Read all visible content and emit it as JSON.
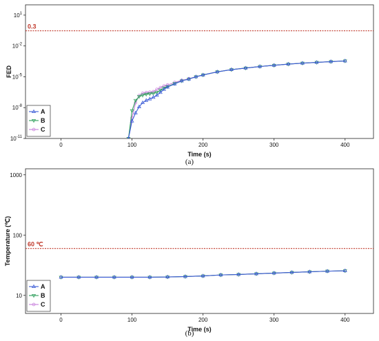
{
  "chart_data": [
    {
      "type": "line",
      "caption": "(a)",
      "xlabel": "Time (s)",
      "ylabel": "FED",
      "xlim": [
        -50,
        440
      ],
      "xticks": [
        0,
        100,
        200,
        300,
        400
      ],
      "yscale": "log",
      "ylim_exp": [
        -11,
        2
      ],
      "yticks": [
        {
          "exp": 1,
          "base": "10",
          "sup": "1"
        },
        {
          "exp": -2,
          "base": "10",
          "sup": "-2"
        },
        {
          "exp": -5,
          "base": "10",
          "sup": "-5"
        },
        {
          "exp": -8,
          "base": "10",
          "sup": "-8"
        },
        {
          "exp": -11,
          "base": "10",
          "sup": "-11"
        }
      ],
      "reference": {
        "value": 0.3,
        "label": "0.3",
        "color": "#c0392b"
      },
      "legend": "bottom-left",
      "series": [
        {
          "name": "A",
          "color": "#3b5bd6",
          "marker": "triangle-up",
          "x": [
            95,
            100,
            105,
            110,
            115,
            120,
            125,
            130,
            135,
            140,
            145,
            150,
            160,
            170,
            180,
            190,
            200,
            220,
            240,
            260,
            280,
            300,
            320,
            340,
            360,
            380,
            400
          ],
          "y": [
            1e-11,
            5e-10,
            3e-09,
            1.2e-08,
            3e-08,
            5e-08,
            7e-08,
            1e-07,
            1.6e-07,
            3e-07,
            6e-07,
            1e-06,
            2e-06,
            4e-06,
            6e-06,
            1e-05,
            1.5e-05,
            3e-05,
            5e-05,
            7e-05,
            0.0001,
            0.00013,
            0.00017,
            0.00021,
            0.00025,
            0.0003,
            0.00035
          ]
        },
        {
          "name": "B",
          "color": "#2e9e5b",
          "marker": "triangle-down",
          "x": [
            95,
            100,
            105,
            110,
            115,
            120,
            125,
            130,
            135,
            140,
            145,
            150,
            160,
            170,
            180,
            190,
            200,
            220,
            240,
            260,
            280,
            300,
            320,
            340,
            360,
            380,
            400
          ],
          "y": [
            1e-11,
            5e-09,
            5e-08,
            1.2e-07,
            1.6e-07,
            2e-07,
            2.2e-07,
            2.4e-07,
            3e-07,
            5e-07,
            8e-07,
            1.1e-06,
            2.2e-06,
            4e-06,
            6e-06,
            1e-05,
            1.5e-05,
            3e-05,
            5e-05,
            7e-05,
            0.0001,
            0.00013,
            0.00017,
            0.00021,
            0.00025,
            0.0003,
            0.00035
          ]
        },
        {
          "name": "C",
          "color": "#c77ddb",
          "marker": "circle",
          "x": [
            95,
            100,
            105,
            110,
            115,
            120,
            125,
            130,
            135,
            140,
            145,
            150,
            160,
            170,
            180,
            190,
            200,
            220,
            240,
            260,
            280,
            300,
            320,
            340,
            360,
            380,
            400
          ],
          "y": [
            1e-11,
            1e-09,
            3e-08,
            1.5e-07,
            2.5e-07,
            3e-07,
            3.2e-07,
            3.6e-07,
            6e-07,
            9e-07,
            1.3e-06,
            1.6e-06,
            2.8e-06,
            4.5e-06,
            6.5e-06,
            1e-05,
            1.5e-05,
            3e-05,
            5e-05,
            7e-05,
            0.0001,
            0.00013,
            0.00017,
            0.00021,
            0.00025,
            0.0003,
            0.00035
          ]
        }
      ]
    },
    {
      "type": "line",
      "caption": "(b)",
      "xlabel": "Time (s)",
      "ylabel": "Temperature (℃)",
      "xlim": [
        -50,
        440
      ],
      "xticks": [
        0,
        100,
        200,
        300,
        400
      ],
      "yscale": "log",
      "ylim_exp": [
        0.7,
        3.1
      ],
      "yticks": [
        {
          "exp": 3,
          "base": "1000",
          "sup": ""
        },
        {
          "exp": 2,
          "base": "100",
          "sup": ""
        },
        {
          "exp": 1,
          "base": "10",
          "sup": ""
        }
      ],
      "reference": {
        "value": 60,
        "label": "60 ℃",
        "color": "#c0392b"
      },
      "legend": "bottom-left",
      "series": [
        {
          "name": "A",
          "color": "#3b5bd6",
          "marker": "triangle-up",
          "x": [
            0,
            25,
            50,
            75,
            100,
            125,
            150,
            175,
            200,
            225,
            250,
            275,
            300,
            325,
            350,
            375,
            400
          ],
          "y": [
            20,
            20,
            20,
            20,
            20,
            20,
            20.2,
            20.5,
            21,
            21.8,
            22.2,
            22.8,
            23.4,
            24,
            24.6,
            25.2,
            25.6
          ]
        },
        {
          "name": "B",
          "color": "#2e9e5b",
          "marker": "triangle-down",
          "x": [
            0,
            25,
            50,
            75,
            100,
            125,
            150,
            175,
            200,
            225,
            250,
            275,
            300,
            325,
            350,
            375,
            400
          ],
          "y": [
            20,
            20,
            20,
            20,
            20,
            20,
            20.2,
            20.5,
            21,
            21.8,
            22.2,
            22.8,
            23.4,
            24,
            24.6,
            25.2,
            25.6
          ]
        },
        {
          "name": "C",
          "color": "#c77ddb",
          "marker": "circle",
          "x": [
            0,
            25,
            50,
            75,
            100,
            125,
            150,
            175,
            200,
            225,
            250,
            275,
            300,
            325,
            350,
            375,
            400
          ],
          "y": [
            20,
            20,
            20,
            20,
            20,
            20,
            20.2,
            20.5,
            21,
            21.8,
            22.2,
            22.8,
            23.4,
            24,
            24.6,
            25.2,
            25.6
          ]
        }
      ]
    }
  ]
}
